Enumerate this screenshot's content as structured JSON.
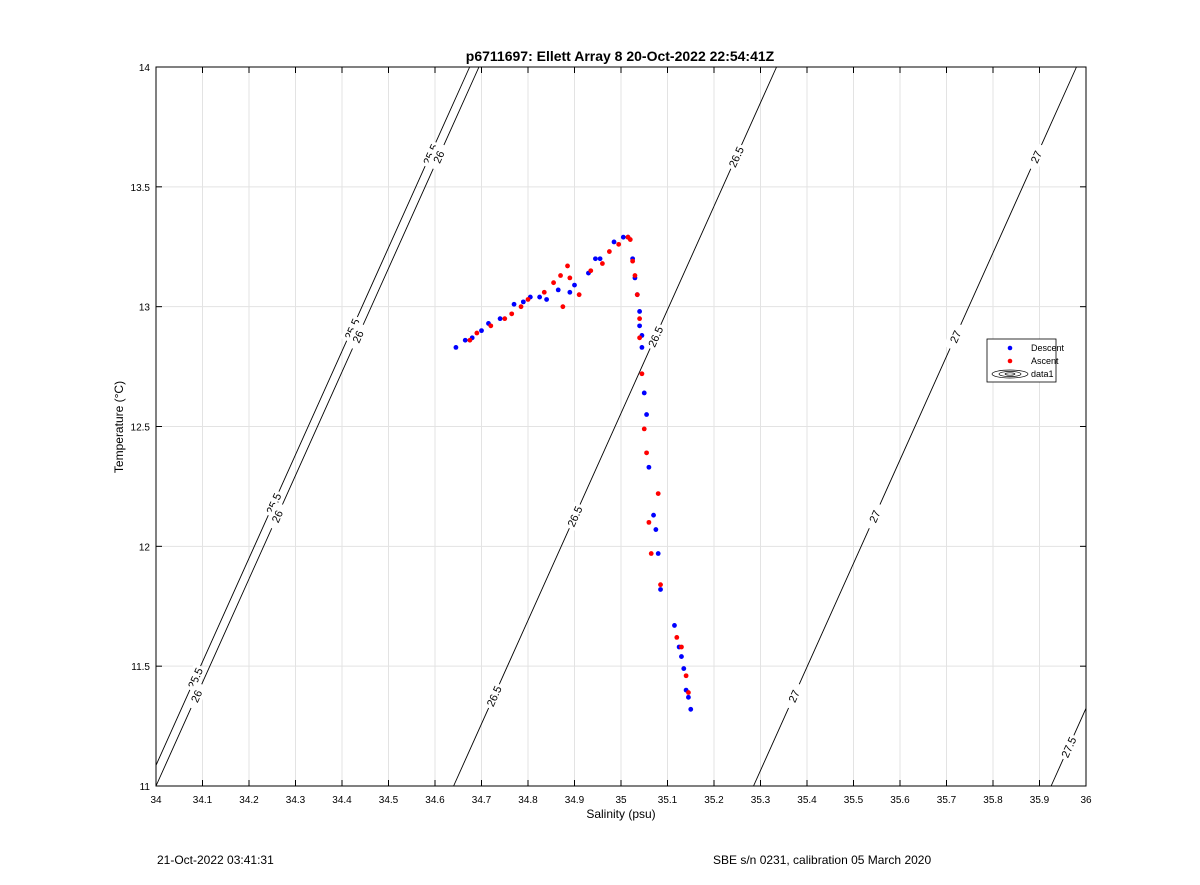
{
  "chart_data": {
    "type": "scatter",
    "title": "p6711697: Ellett Array 8 20-Oct-2022 22:54:41Z",
    "xlabel": "Salinity (psu)",
    "ylabel": "Temperature (°C)",
    "xlim": [
      34,
      36
    ],
    "ylim": [
      11,
      14
    ],
    "grid": true,
    "x_ticks": [
      "34",
      "34.1",
      "34.2",
      "34.3",
      "34.4",
      "34.5",
      "34.6",
      "34.7",
      "34.8",
      "34.9",
      "35",
      "35.1",
      "35.2",
      "35.3",
      "35.4",
      "35.5",
      "35.6",
      "35.7",
      "35.8",
      "35.9",
      "36"
    ],
    "y_ticks": [
      "11",
      "11.5",
      "12",
      "12.5",
      "13",
      "13.5",
      "14"
    ],
    "legend_position": "right",
    "series": [
      {
        "name": "Descent",
        "color": "#0000ff",
        "x": [
          34.645,
          34.665,
          34.68,
          34.7,
          34.715,
          34.74,
          34.77,
          34.79,
          34.805,
          34.825,
          34.84,
          34.865,
          34.89,
          34.9,
          34.93,
          34.945,
          34.955,
          34.985,
          35.005,
          35.015,
          35.025,
          35.03,
          35.035,
          35.04,
          35.04,
          35.045,
          35.045,
          35.05,
          35.055,
          35.06,
          35.07,
          35.075,
          35.08,
          35.085,
          35.115,
          35.125,
          35.13,
          35.135,
          35.14,
          35.145,
          35.15
        ],
        "y": [
          12.83,
          12.86,
          12.87,
          12.9,
          12.93,
          12.95,
          13.01,
          13.02,
          13.04,
          13.04,
          13.03,
          13.07,
          13.06,
          13.09,
          13.14,
          13.2,
          13.2,
          13.27,
          13.29,
          13.29,
          13.2,
          13.12,
          13.05,
          12.98,
          12.92,
          12.88,
          12.83,
          12.64,
          12.55,
          12.33,
          12.13,
          12.07,
          11.97,
          11.82,
          11.67,
          11.58,
          11.54,
          11.49,
          11.4,
          11.37,
          11.32
        ]
      },
      {
        "name": "Ascent",
        "color": "#ff0000",
        "x": [
          34.675,
          34.69,
          34.72,
          34.75,
          34.765,
          34.785,
          34.8,
          34.835,
          34.855,
          34.87,
          34.875,
          34.885,
          34.89,
          34.91,
          34.935,
          34.96,
          34.975,
          34.995,
          35.015,
          35.02,
          35.025,
          35.03,
          35.035,
          35.04,
          35.04,
          35.045,
          35.05,
          35.055,
          35.06,
          35.065,
          35.08,
          35.085,
          35.12,
          35.13,
          35.14,
          35.145
        ],
        "y": [
          12.86,
          12.89,
          12.92,
          12.95,
          12.97,
          13.0,
          13.03,
          13.06,
          13.1,
          13.13,
          13.0,
          13.17,
          13.12,
          13.05,
          13.15,
          13.18,
          13.23,
          13.26,
          13.29,
          13.28,
          13.19,
          13.13,
          13.05,
          12.95,
          12.87,
          12.72,
          12.49,
          12.39,
          12.1,
          11.97,
          12.22,
          11.84,
          11.62,
          11.58,
          11.46,
          11.39
        ]
      },
      {
        "name": "data1"
      }
    ],
    "contours": [
      {
        "label": "25.5",
        "x0": 33.98,
        "dxdT": 0.2315
      },
      {
        "label": "26",
        "x0": 34.0,
        "dxdT": 0.2315
      },
      {
        "label": "26.5",
        "x0": 34.64,
        "dxdT": 0.2315
      },
      {
        "label": "27",
        "x0": 35.285,
        "dxdT": 0.2315
      },
      {
        "label": "27.5",
        "x0": 35.925,
        "dxdT": 0.2315
      }
    ]
  },
  "footer": {
    "timestamp": "21-Oct-2022 03:41:31",
    "calibration": "SBE s/n 0231, calibration 05 March 2020"
  }
}
